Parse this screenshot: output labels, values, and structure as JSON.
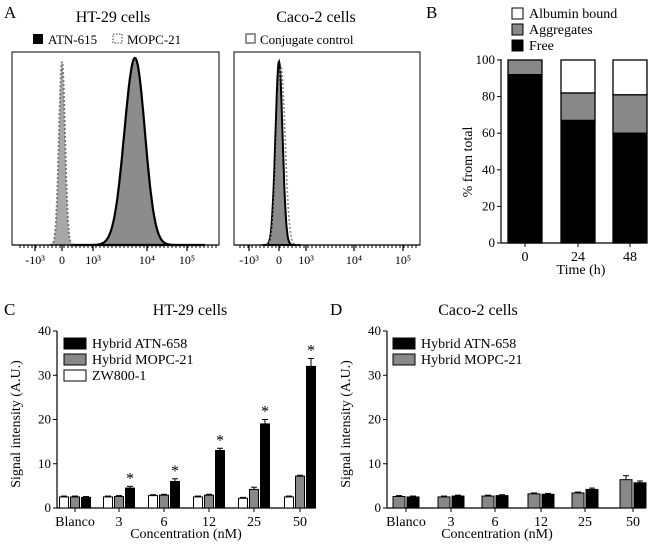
{
  "panels": {
    "A": {
      "letter": "A",
      "chart_data": [
        {
          "type": "area",
          "title": "HT-29 cells",
          "legend": [
            {
              "label": "ATN-615",
              "style": "solid",
              "color": "#000000"
            },
            {
              "label": "MOPC-21",
              "style": "dotted",
              "color": "#888888"
            }
          ],
          "xticks": [
            "-10³",
            "0",
            "10³",
            "10⁴",
            "10⁵"
          ],
          "series": [
            {
              "name": "MOPC-21",
              "style": "dotted",
              "peak_at": "0",
              "relative_peak": 0.97
            },
            {
              "name": "ATN-615",
              "style": "solid",
              "peak_at": "~10⁴",
              "relative_peak": 0.99
            }
          ]
        },
        {
          "type": "area",
          "title": "Caco-2 cells",
          "legend": [
            {
              "label": "Conjugate control",
              "style": "square",
              "color": "#888888"
            }
          ],
          "xticks": [
            "-10³",
            "0",
            "10³",
            "10⁴",
            "10⁵"
          ],
          "series": [
            {
              "name": "Conjugate control",
              "style": "dotted",
              "peak_at": "0",
              "relative_peak": 0.97
            }
          ]
        }
      ]
    },
    "B": {
      "letter": "B",
      "chart_data": {
        "type": "bar",
        "stacked": true,
        "categories": [
          "0",
          "24",
          "48"
        ],
        "series": [
          {
            "name": "Free",
            "color": "#000000",
            "values": [
              92,
              67,
              60
            ]
          },
          {
            "name": "Aggregates",
            "color": "#888888",
            "values": [
              8,
              15,
              21
            ]
          },
          {
            "name": "Albumin bound",
            "color": "#ffffff",
            "values": [
              0,
              18,
              19
            ]
          }
        ],
        "legend_order": [
          "Albumin bound",
          "Aggregates",
          "Free"
        ],
        "xlabel": "Time (h)",
        "ylabel": "% from total",
        "ylim": [
          0,
          100
        ],
        "yticks": [
          "0",
          "20",
          "40",
          "60",
          "80",
          "100"
        ]
      }
    },
    "C": {
      "letter": "C",
      "chart_data": {
        "type": "bar",
        "title": "HT-29 cells",
        "categories": [
          "Blanco",
          "3",
          "6",
          "12",
          "25",
          "50"
        ],
        "series": [
          {
            "name": "ZW800-1",
            "color": "#ffffff",
            "values": [
              2.5,
              2.5,
              2.8,
              2.5,
              2.2,
              2.5
            ],
            "errors": [
              0.2,
              0.2,
              0.2,
              0.2,
              0.2,
              0.2
            ]
          },
          {
            "name": "Hybrid MOPC-21",
            "color": "#888888",
            "values": [
              2.5,
              2.6,
              2.9,
              2.9,
              4.2,
              7.2
            ],
            "errors": [
              0.2,
              0.2,
              0.2,
              0.2,
              0.5,
              0.2
            ]
          },
          {
            "name": "Hybrid ATN-658",
            "color": "#000000",
            "values": [
              2.4,
              4.5,
              6.0,
              13.0,
              19.0,
              32.0
            ],
            "errors": [
              0.2,
              0.4,
              0.6,
              0.5,
              1.0,
              1.8
            ]
          }
        ],
        "legend_order": [
          "Hybrid ATN-658",
          "Hybrid MOPC-21",
          "ZW800-1"
        ],
        "significance": [
          "",
          "*",
          "*",
          "*",
          "*",
          "*"
        ],
        "xlabel": "Concentration (nM)",
        "ylabel": "Signal intensity (A.U.)",
        "ylim": [
          0,
          40
        ],
        "yticks": [
          "0",
          "10",
          "20",
          "30",
          "40"
        ]
      }
    },
    "D": {
      "letter": "D",
      "chart_data": {
        "type": "bar",
        "title": "Caco-2 cells",
        "categories": [
          "Blanco",
          "3",
          "6",
          "12",
          "25",
          "50"
        ],
        "series": [
          {
            "name": "Hybrid MOPC-21",
            "color": "#888888",
            "values": [
              2.6,
              2.5,
              2.7,
              3.2,
              3.4,
              6.4
            ],
            "errors": [
              0.2,
              0.2,
              0.2,
              0.2,
              0.2,
              0.9
            ]
          },
          {
            "name": "Hybrid ATN-658",
            "color": "#000000",
            "values": [
              2.5,
              2.7,
              2.8,
              3.1,
              4.2,
              5.7
            ],
            "errors": [
              0.2,
              0.2,
              0.2,
              0.2,
              0.3,
              0.4
            ]
          }
        ],
        "legend_order": [
          "Hybrid ATN-658",
          "Hybrid MOPC-21"
        ],
        "xlabel": "Concentration (nM)",
        "ylabel": "Signal intensity (A.U.)",
        "ylim": [
          0,
          40
        ],
        "yticks": [
          "0",
          "10",
          "20",
          "30",
          "40"
        ]
      }
    }
  }
}
